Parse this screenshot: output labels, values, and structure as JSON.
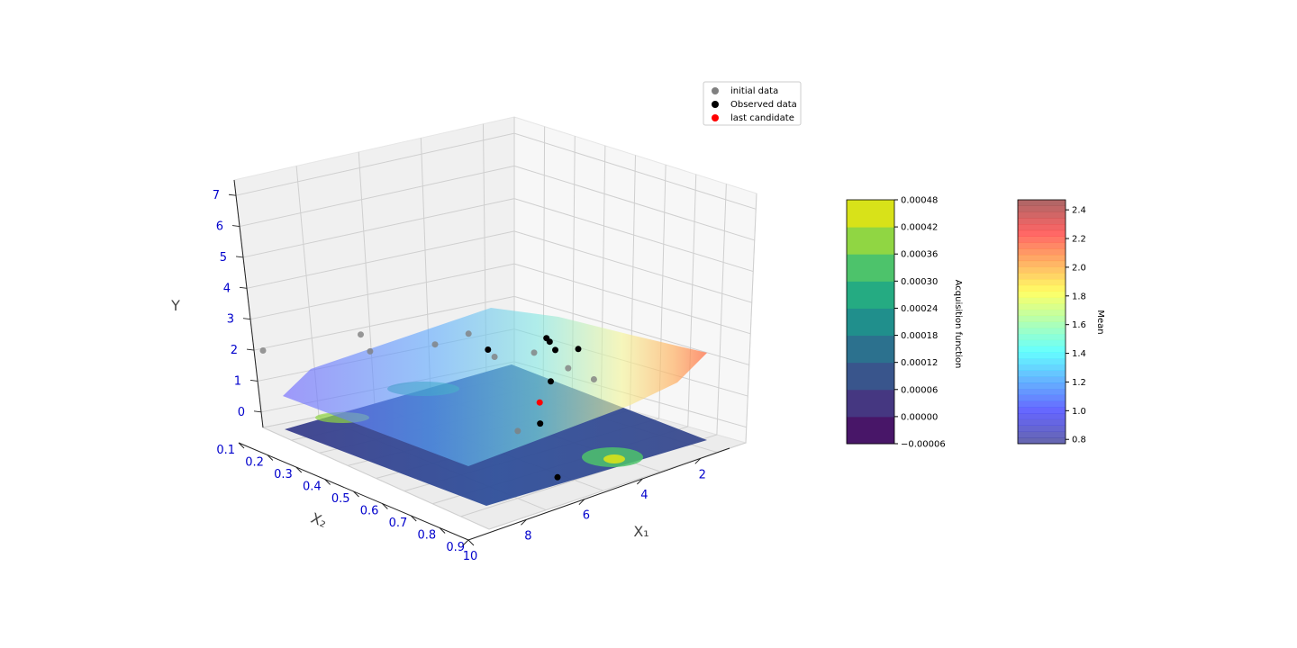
{
  "chart_data": [
    {
      "type": "surface3d",
      "title": "",
      "xlabel": "X₁",
      "ylabel": "X₂",
      "zlabel": "Y",
      "x_ticks": [
        "2",
        "4",
        "6",
        "8",
        "10"
      ],
      "y_ticks": [
        "0.1",
        "0.2",
        "0.3",
        "0.4",
        "0.5",
        "0.6",
        "0.7",
        "0.8",
        "0.9"
      ],
      "z_ticks": [
        "0",
        "1",
        "2",
        "3",
        "4",
        "5",
        "6",
        "7"
      ],
      "xlim": [
        1,
        10
      ],
      "ylim": [
        0.1,
        0.9
      ],
      "zlim": [
        -0.5,
        7.5
      ],
      "legend": {
        "placement": "top-right",
        "entries": [
          {
            "label": "initial data",
            "color": "#808080"
          },
          {
            "label": "Observed data",
            "color": "#000000"
          },
          {
            "label": "last candidate",
            "color": "#ff0000"
          }
        ]
      },
      "series": [
        {
          "name": "initial data",
          "color": "#808080",
          "points": [
            {
              "x": 10,
              "y": 0.1,
              "z": 1.9
            },
            {
              "x": 6.5,
              "y": 0.1,
              "z": 1.8
            },
            {
              "x": 8.2,
              "y": 0.3,
              "z": 2.3
            },
            {
              "x": 6.9,
              "y": 0.4,
              "z": 2.6
            },
            {
              "x": 5.2,
              "y": 0.35,
              "z": 2.4
            },
            {
              "x": 5.8,
              "y": 0.5,
              "z": 2.3
            },
            {
              "x": 4.4,
              "y": 0.5,
              "z": 2.1
            },
            {
              "x": 3.7,
              "y": 0.55,
              "z": 1.6
            },
            {
              "x": 3.3,
              "y": 0.6,
              "z": 1.3
            },
            {
              "x": 8.0,
              "y": 0.8,
              "z": 1.6
            }
          ]
        },
        {
          "name": "Observed data",
          "color": "#000000",
          "points": [
            {
              "x": 1.4,
              "y": 0.25,
              "z": 1.2
            },
            {
              "x": 1.3,
              "y": 0.35,
              "z": 1.1
            },
            {
              "x": 1.6,
              "y": 0.3,
              "z": 1.0
            },
            {
              "x": 1.8,
              "y": 0.3,
              "z": 1.3
            },
            {
              "x": 4.0,
              "y": 0.3,
              "z": 1.5
            },
            {
              "x": 3.3,
              "y": 0.45,
              "z": 0.8
            },
            {
              "x": 5.2,
              "y": 0.6,
              "z": 0.4
            },
            {
              "x": 7.6,
              "y": 0.9,
              "z": 0.4
            }
          ]
        },
        {
          "name": "last candidate",
          "color": "#ff0000",
          "points": [
            {
              "x": 4.2,
              "y": 0.5,
              "z": 0.5
            }
          ]
        }
      ]
    },
    {
      "type": "colorbar",
      "label": "Acquisition function",
      "ticks": [
        "−0.00006",
        "0.00000",
        "0.00006",
        "0.00012",
        "0.00018",
        "0.00024",
        "0.00030",
        "0.00036",
        "0.00042",
        "0.00048"
      ],
      "min": -6e-05,
      "max": 0.00048,
      "colors": [
        "#481668",
        "#453781",
        "#39558c",
        "#2c718e",
        "#208f8c",
        "#25ab82",
        "#4dc36b",
        "#90d643",
        "#d8e219"
      ]
    },
    {
      "type": "colorbar",
      "label": "Mean",
      "ticks": [
        "0.8",
        "1.0",
        "1.2",
        "1.4",
        "1.6",
        "1.8",
        "2.0",
        "2.2",
        "2.4"
      ],
      "min": 0.77,
      "max": 2.47,
      "colormap": "jet",
      "alpha": 0.6
    }
  ]
}
